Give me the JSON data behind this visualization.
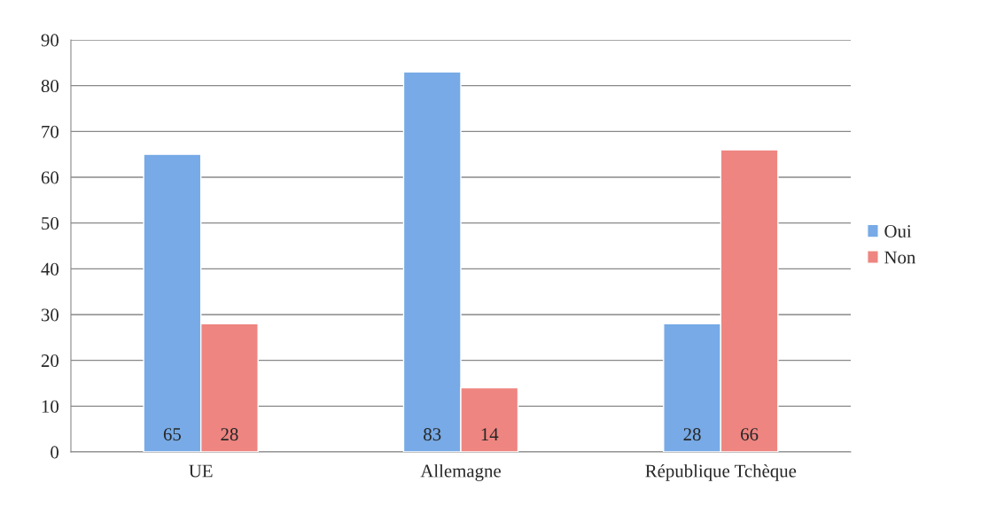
{
  "chart_data": {
    "type": "bar",
    "categories": [
      "UE",
      "Allemagne",
      "République Tchèque"
    ],
    "series": [
      {
        "name": "Oui",
        "color": "#77aae6",
        "values": [
          65,
          83,
          28
        ]
      },
      {
        "name": "Non",
        "color": "#ee8580",
        "values": [
          28,
          14,
          66
        ]
      }
    ],
    "ylim": [
      0,
      90
    ],
    "yticks": [
      0,
      10,
      20,
      30,
      40,
      50,
      60,
      70,
      80,
      90
    ],
    "grid": "y",
    "legend": "right",
    "data_labels": true
  }
}
